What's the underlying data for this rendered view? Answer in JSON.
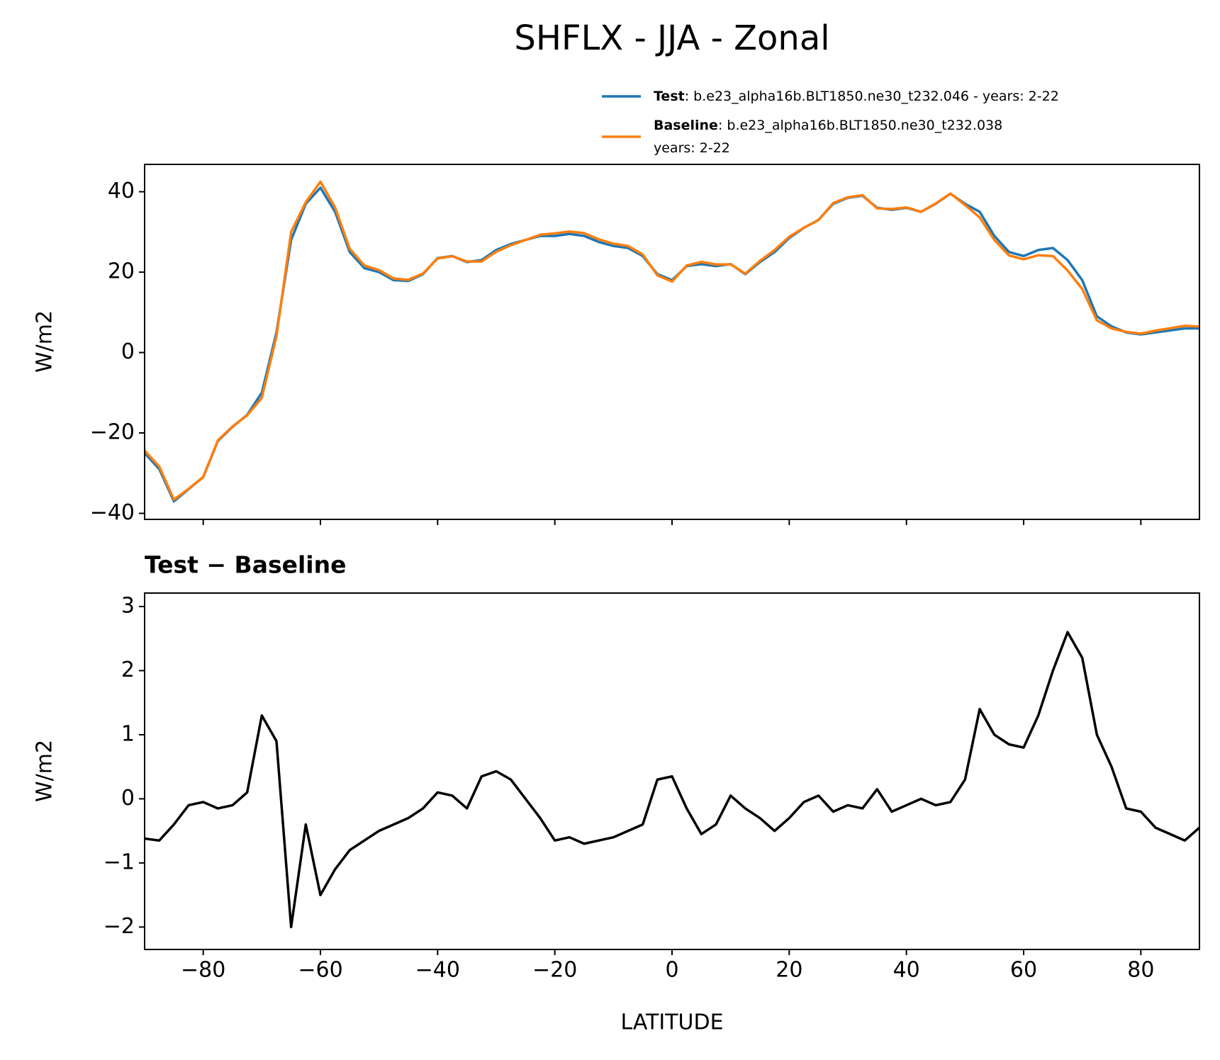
{
  "chart_data": [
    {
      "type": "line",
      "title": "SHFLX - JJA - Zonal",
      "ylabel": "W/m2",
      "x": [
        -90,
        -87.5,
        -85,
        -82.5,
        -80,
        -77.5,
        -75,
        -72.5,
        -70,
        -67.5,
        -65,
        -62.5,
        -60,
        -57.5,
        -55,
        -52.5,
        -50,
        -47.5,
        -45,
        -42.5,
        -40,
        -37.5,
        -35,
        -32.5,
        -30,
        -27.5,
        -25,
        -22.5,
        -20,
        -17.5,
        -15,
        -12.5,
        -10,
        -7.5,
        -5,
        -2.5,
        0,
        2.5,
        5,
        7.5,
        10,
        12.5,
        15,
        17.5,
        20,
        22.5,
        25,
        27.5,
        30,
        32.5,
        35,
        37.5,
        40,
        42.5,
        45,
        47.5,
        50,
        52.5,
        55,
        57.5,
        60,
        62.5,
        65,
        67.5,
        70,
        72.5,
        75,
        77.5,
        80,
        82.5,
        85,
        87.5,
        90
      ],
      "series": [
        {
          "name": "Test",
          "description": [
            ": b.e23_alpha16b.BLT1850.ne30_t232.046 - years: 2-22"
          ],
          "color": "#1f77b4",
          "values": [
            -25,
            -29,
            -37,
            -34,
            -31,
            -22,
            -18.5,
            -15.5,
            -10,
            5,
            28,
            37,
            41,
            35,
            25,
            21,
            20,
            18,
            17.8,
            19.5,
            23.5,
            24,
            22.5,
            23,
            25.5,
            27,
            28,
            29,
            29,
            29.5,
            29,
            27.5,
            26.5,
            26,
            24,
            19.5,
            18,
            21.5,
            22,
            21.5,
            22,
            19.5,
            22.5,
            25,
            28.5,
            31,
            33,
            37,
            38.5,
            39,
            36,
            35.5,
            36,
            35,
            37,
            39.5,
            37,
            35,
            29,
            25,
            24,
            25.5,
            26,
            23,
            18,
            9,
            6.5,
            5,
            4.5,
            5,
            5.5,
            6,
            6
          ]
        },
        {
          "name": "Baseline",
          "description": [
            ": b.e23_alpha16b.BLT1850.ne30_t232.038",
            "years: 2-22"
          ],
          "color": "#ff7f0e",
          "values": [
            -24.38,
            -28.35,
            -36.6,
            -33.9,
            -30.95,
            -21.85,
            -18.4,
            -15.6,
            -11.3,
            4.1,
            30,
            37.4,
            42.5,
            36.1,
            25.8,
            21.65,
            20.5,
            18.4,
            18.1,
            19.65,
            23.4,
            23.95,
            22.65,
            22.65,
            25.07,
            26.7,
            28,
            29.3,
            29.65,
            30.1,
            29.7,
            28.15,
            27.1,
            26.5,
            24.4,
            19.2,
            17.65,
            21.65,
            22.55,
            21.9,
            21.95,
            19.65,
            22.8,
            25.5,
            28.8,
            31.05,
            32.95,
            37.2,
            38.6,
            39.15,
            35.85,
            35.7,
            36.1,
            35,
            37.1,
            39.55,
            36.7,
            33.6,
            28,
            24.15,
            23.2,
            24.2,
            24,
            20.4,
            15.8,
            8,
            6,
            5.15,
            4.7,
            5.45,
            6.05,
            6.65,
            6.45
          ]
        }
      ],
      "xlim": [
        -90,
        90
      ],
      "xticks": [
        -80,
        -60,
        -40,
        -20,
        0,
        20,
        40,
        60,
        80
      ],
      "ylim": [
        -41.5,
        46.8
      ],
      "yticks": [
        {
          "value": -40,
          "label": "−40"
        },
        {
          "value": -20,
          "label": "−20"
        },
        0,
        20,
        40
      ]
    },
    {
      "type": "line",
      "title": "Test − Baseline",
      "ylabel": "W/m2",
      "xlabel": "LATITUDE",
      "x": [
        -90,
        -87.5,
        -85,
        -82.5,
        -80,
        -77.5,
        -75,
        -72.5,
        -70,
        -67.5,
        -65,
        -62.5,
        -60,
        -57.5,
        -55,
        -52.5,
        -50,
        -47.5,
        -45,
        -42.5,
        -40,
        -37.5,
        -35,
        -32.5,
        -30,
        -27.5,
        -25,
        -22.5,
        -20,
        -17.5,
        -15,
        -12.5,
        -10,
        -7.5,
        -5,
        -2.5,
        0,
        2.5,
        5,
        7.5,
        10,
        12.5,
        15,
        17.5,
        20,
        22.5,
        25,
        27.5,
        30,
        32.5,
        35,
        37.5,
        40,
        42.5,
        45,
        47.5,
        50,
        52.5,
        55,
        57.5,
        60,
        62.5,
        65,
        67.5,
        70,
        72.5,
        75,
        77.5,
        80,
        82.5,
        85,
        87.5,
        90
      ],
      "series": [
        {
          "color": "#000000",
          "values": [
            -0.62,
            -0.65,
            -0.4,
            -0.1,
            -0.05,
            -0.15,
            -0.1,
            0.1,
            1.3,
            0.9,
            -2,
            -0.4,
            -1.5,
            -1.1,
            -0.8,
            -0.65,
            -0.5,
            -0.4,
            -0.3,
            -0.15,
            0.1,
            0.05,
            -0.15,
            0.35,
            0.43,
            0.3,
            0,
            -0.3,
            -0.65,
            -0.6,
            -0.7,
            -0.65,
            -0.6,
            -0.5,
            -0.4,
            0.3,
            0.35,
            -0.15,
            -0.55,
            -0.4,
            0.05,
            -0.15,
            -0.3,
            -0.5,
            -0.3,
            -0.05,
            0.05,
            -0.2,
            -0.1,
            -0.15,
            0.15,
            -0.2,
            -0.1,
            0,
            -0.1,
            -0.05,
            0.3,
            1.4,
            1,
            0.85,
            0.8,
            1.3,
            2,
            2.6,
            2.2,
            1,
            0.5,
            -0.15,
            -0.2,
            -0.45,
            -0.55,
            -0.65,
            -0.45
          ]
        }
      ],
      "xlim": [
        -90,
        90
      ],
      "xticks": [
        {
          "value": -80,
          "label": "−80"
        },
        {
          "value": -60,
          "label": "−60"
        },
        {
          "value": -40,
          "label": "−40"
        },
        {
          "value": -20,
          "label": "−20"
        },
        0,
        20,
        40,
        60,
        80
      ],
      "ylim": [
        -2.35,
        3.21
      ],
      "yticks": [
        {
          "value": -2,
          "label": "−2"
        },
        {
          "value": -1,
          "label": "−1"
        },
        0,
        1,
        2,
        3
      ]
    }
  ]
}
